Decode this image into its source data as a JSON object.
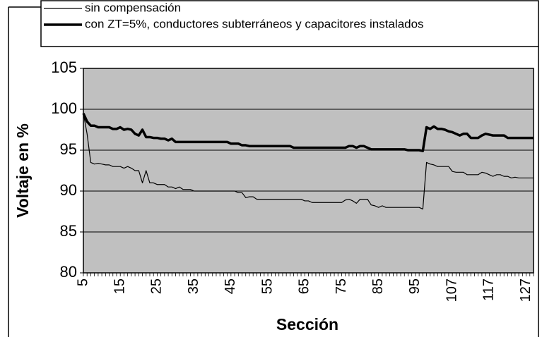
{
  "chart_data": {
    "type": "line",
    "xlabel": "Sección",
    "ylabel": "Voltaje en %",
    "categories": [
      5,
      null,
      null,
      null,
      null,
      null,
      null,
      null,
      null,
      null,
      15,
      null,
      null,
      null,
      null,
      null,
      null,
      null,
      null,
      null,
      25,
      null,
      null,
      null,
      null,
      null,
      null,
      null,
      null,
      null,
      35,
      null,
      null,
      null,
      null,
      null,
      null,
      null,
      null,
      null,
      45,
      null,
      null,
      null,
      null,
      null,
      null,
      null,
      null,
      null,
      55,
      null,
      null,
      null,
      null,
      null,
      null,
      null,
      null,
      null,
      65,
      null,
      null,
      null,
      null,
      null,
      null,
      null,
      null,
      null,
      75,
      null,
      null,
      null,
      null,
      null,
      null,
      null,
      null,
      null,
      85,
      null,
      null,
      null,
      null,
      null,
      null,
      null,
      null,
      null,
      95,
      null,
      null,
      null,
      null,
      null,
      null,
      null,
      null,
      null,
      107,
      null,
      null,
      null,
      null,
      null,
      null,
      null,
      null,
      null,
      117,
      null,
      null,
      null,
      null,
      null,
      null,
      null,
      null,
      null,
      127,
      null,
      null
    ],
    "series": [
      {
        "name": "sin compensación",
        "color": "#000000",
        "width": 1.2,
        "values": [
          99.5,
          97,
          93.5,
          93.3,
          93.4,
          93.3,
          93.2,
          93.2,
          93.0,
          93.0,
          93.0,
          92.8,
          93.0,
          92.8,
          92.5,
          92.5,
          91.0,
          92.5,
          91.0,
          91.0,
          90.8,
          90.8,
          90.8,
          90.5,
          90.5,
          90.3,
          90.5,
          90.2,
          90.2,
          90.2,
          90.0,
          90.0,
          90.0,
          90.0,
          90.0,
          90.0,
          90.0,
          90.0,
          90.0,
          90.0,
          90.0,
          90.0,
          89.8,
          89.8,
          89.2,
          89.3,
          89.3,
          89.0,
          89.0,
          89.0,
          89.0,
          89.0,
          89.0,
          89.0,
          89.0,
          89.0,
          89.0,
          89.0,
          89.0,
          89.0,
          88.8,
          88.8,
          88.6,
          88.6,
          88.6,
          88.6,
          88.6,
          88.6,
          88.6,
          88.6,
          88.6,
          88.9,
          89.0,
          88.8,
          88.5,
          89.0,
          89.0,
          89.0,
          88.3,
          88.2,
          88.0,
          88.2,
          88.0,
          88.0,
          88.0,
          88.0,
          88.0,
          88.0,
          88.0,
          88.0,
          88.0,
          88.0,
          87.8,
          93.5,
          93.3,
          93.2,
          93.0,
          93.0,
          93.0,
          93.0,
          92.4,
          92.3,
          92.3,
          92.3,
          92.0,
          92.0,
          92.0,
          92.0,
          92.3,
          92.2,
          92.0,
          91.8,
          92.0,
          92.0,
          91.8,
          91.8,
          91.6,
          91.7,
          91.6,
          91.6,
          91.6,
          91.6,
          91.6
        ]
      },
      {
        "name": "con ZT=5%, conductores subterráneos y capacitores instalados",
        "color": "#000000",
        "width": 3.5,
        "values": [
          99.5,
          98.5,
          98.0,
          98.0,
          97.8,
          97.8,
          97.8,
          97.8,
          97.6,
          97.6,
          97.8,
          97.5,
          97.6,
          97.5,
          97.0,
          96.8,
          97.5,
          96.6,
          96.6,
          96.5,
          96.5,
          96.4,
          96.4,
          96.2,
          96.4,
          96.0,
          96.0,
          96.0,
          96.0,
          96.0,
          96.0,
          96.0,
          96.0,
          96.0,
          96.0,
          96.0,
          96.0,
          96.0,
          96.0,
          96.0,
          95.8,
          95.8,
          95.8,
          95.6,
          95.6,
          95.5,
          95.5,
          95.5,
          95.5,
          95.5,
          95.5,
          95.5,
          95.5,
          95.5,
          95.5,
          95.5,
          95.5,
          95.3,
          95.3,
          95.3,
          95.3,
          95.3,
          95.3,
          95.3,
          95.3,
          95.3,
          95.3,
          95.3,
          95.3,
          95.3,
          95.3,
          95.3,
          95.5,
          95.5,
          95.3,
          95.5,
          95.5,
          95.3,
          95.1,
          95.1,
          95.1,
          95.1,
          95.1,
          95.1,
          95.1,
          95.1,
          95.1,
          95.1,
          95.0,
          95.0,
          95.0,
          95.0,
          94.9,
          97.8,
          97.6,
          97.9,
          97.6,
          97.6,
          97.5,
          97.3,
          97.2,
          97.0,
          96.8,
          97.0,
          97.0,
          96.5,
          96.5,
          96.5,
          96.8,
          97.0,
          96.9,
          96.8,
          96.8,
          96.8,
          96.8,
          96.5,
          96.5,
          96.5,
          96.5,
          96.5,
          96.5,
          96.5,
          96.5
        ]
      }
    ],
    "ylim": [
      80,
      105
    ],
    "yticks": [
      80,
      85,
      90,
      95,
      100,
      105
    ],
    "grid": true,
    "plot_background": "#c0c0c0",
    "legend": "top"
  }
}
